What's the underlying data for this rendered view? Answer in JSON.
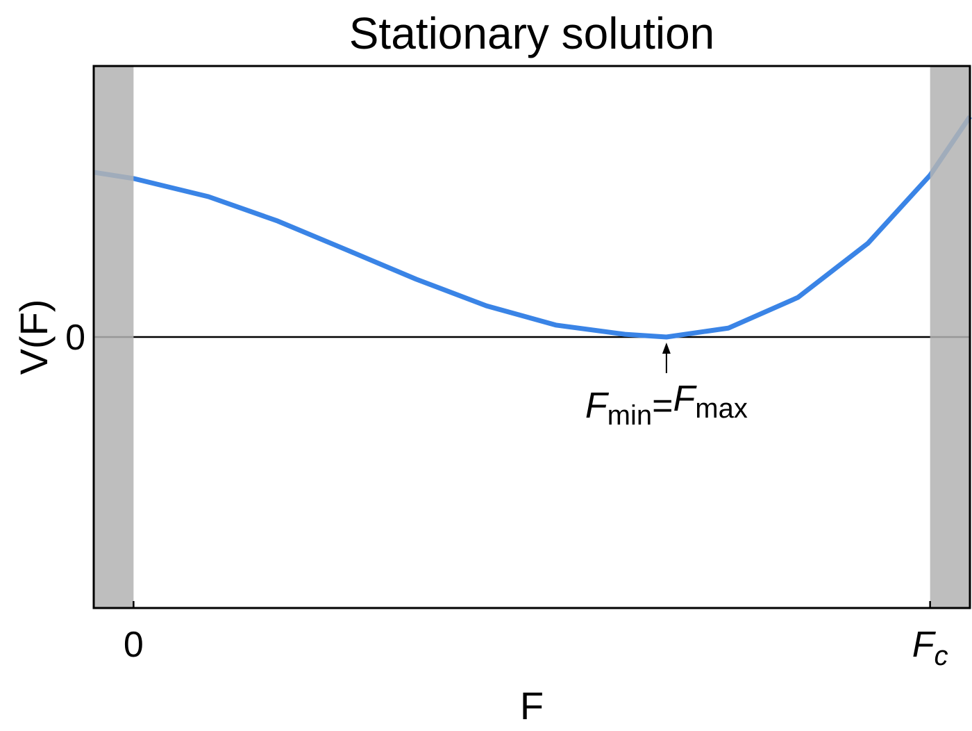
{
  "chart_data": {
    "type": "line",
    "title": "Stationary solution",
    "xlabel": "F",
    "ylabel": "V(F)",
    "x": [
      -0.05,
      0,
      0.094,
      0.181,
      0.268,
      0.355,
      0.443,
      0.53,
      0.617,
      0.669,
      0.747,
      0.834,
      0.922,
      1,
      1.05
    ],
    "values": [
      0.608,
      0.585,
      0.518,
      0.428,
      0.321,
      0.213,
      0.115,
      0.044,
      0.01,
      0,
      0.033,
      0.146,
      0.346,
      0.597,
      0.813
    ],
    "color": "#3a84e6",
    "xlim": [
      -0.05,
      1.05
    ],
    "ylim": [
      -1,
      1
    ],
    "xticks": [
      0,
      {
        "value": 1,
        "label": "F",
        "sub": "c"
      }
    ],
    "yticks": [
      0
    ],
    "shaded_regions": [
      [
        -0.05,
        0
      ],
      [
        1,
        1.05
      ]
    ],
    "shade_color": "#b3b3b3",
    "annotation": {
      "x": 0.669,
      "y": 0,
      "text": [
        "F",
        "min",
        "=",
        "F",
        "max"
      ]
    }
  }
}
